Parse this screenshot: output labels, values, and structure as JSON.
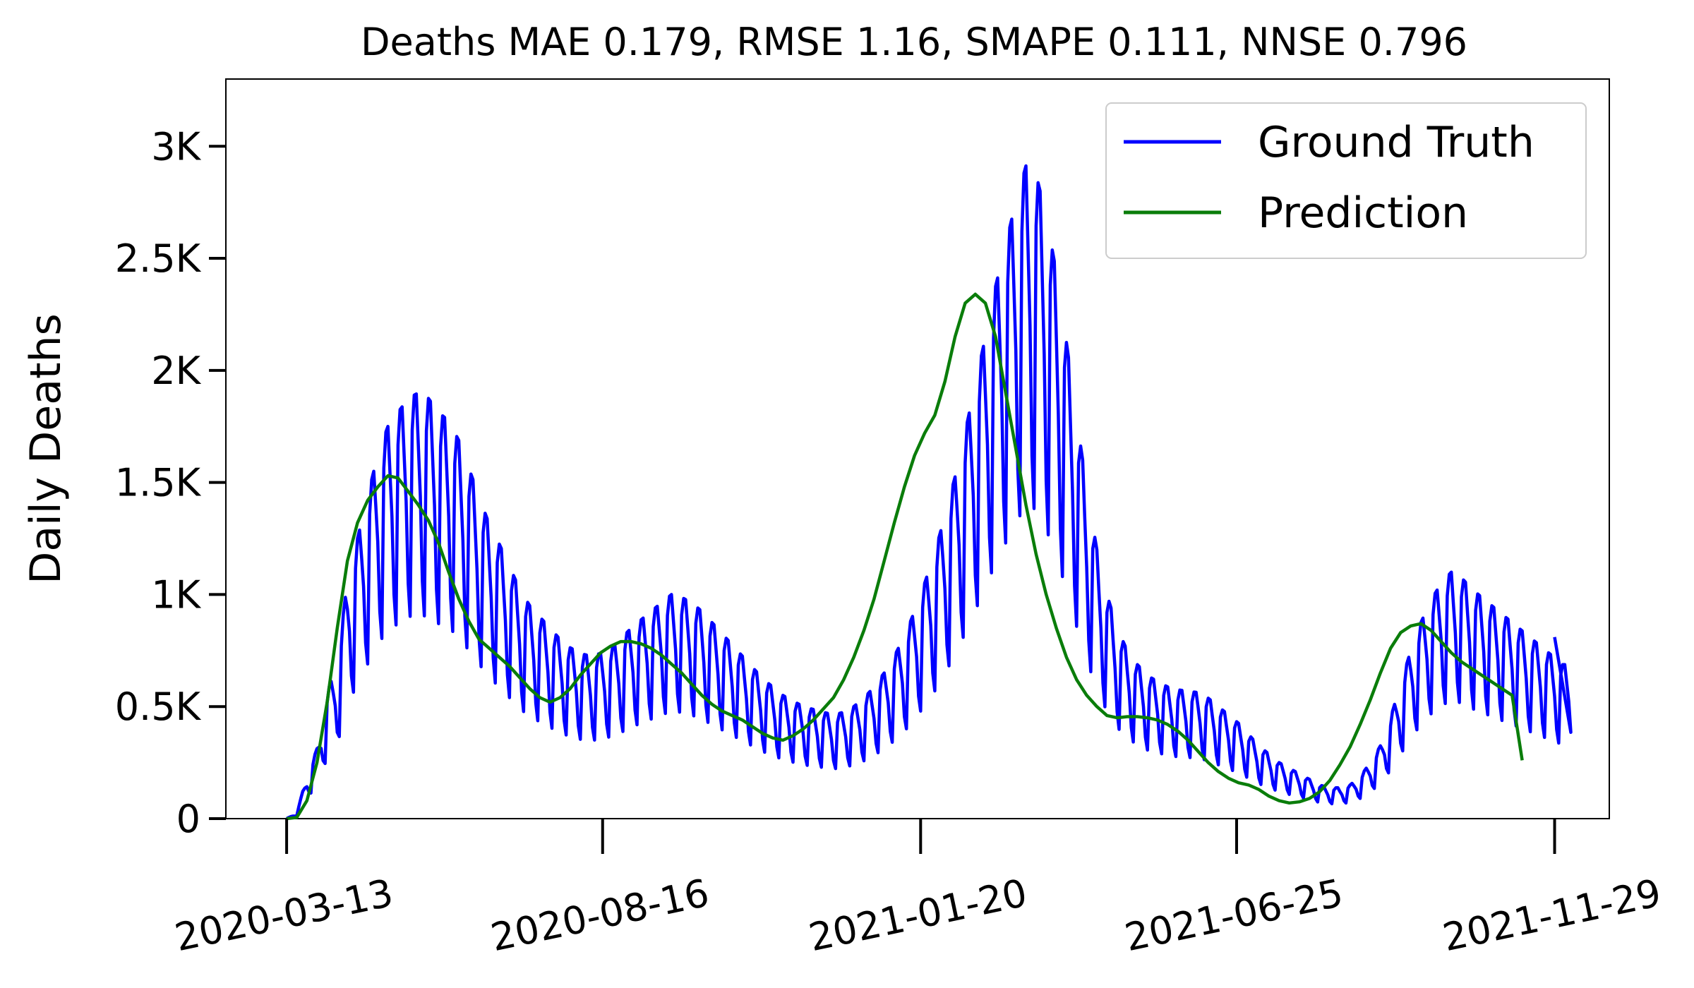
{
  "chart_data": {
    "type": "line",
    "title": "Deaths MAE 0.179, RMSE 1.16, SMAPE 0.111, NNSE 0.796",
    "xlabel": "",
    "ylabel": "Daily Deaths",
    "x_start": "2020-03-13",
    "x_end": "2021-11-29",
    "xticks": [
      "2020-03-13",
      "2020-08-16",
      "2021-01-20",
      "2021-06-25",
      "2021-11-29"
    ],
    "xlim": [
      "2020-02-12",
      "2021-12-26"
    ],
    "yticks": [
      {
        "value": 0,
        "label": "0"
      },
      {
        "value": 500,
        "label": "0.5K"
      },
      {
        "value": 1000,
        "label": "1K"
      },
      {
        "value": 1500,
        "label": "1.5K"
      },
      {
        "value": 2000,
        "label": "2K"
      },
      {
        "value": 2500,
        "label": "2.5K"
      },
      {
        "value": 3000,
        "label": "3K"
      }
    ],
    "ylim": [
      0,
      3300
    ],
    "grid": false,
    "legend_position": "top-right",
    "series": [
      {
        "name": "Ground Truth",
        "color": "#0000ff",
        "step_days": 1,
        "anchor_values": [
          0,
          20,
          150,
          250,
          450,
          550,
          850,
          1000,
          1150,
          1300,
          1400,
          1450,
          1500,
          1520,
          1500,
          1450,
          1420,
          1350,
          1250,
          1150,
          1050,
          980,
          900,
          820,
          760,
          720,
          680,
          640,
          610,
          590,
          580,
          590,
          610,
          640,
          680,
          710,
          740,
          770,
          800,
          790,
          770,
          740,
          700,
          660,
          620,
          580,
          540,
          500,
          470,
          440,
          420,
          400,
          390,
          380,
          370,
          380,
          400,
          430,
          470,
          520,
          580,
          650,
          740,
          840,
          950,
          1080,
          1220,
          1380,
          1550,
          1720,
          1900,
          2050,
          2200,
          2330,
          2300,
          2150,
          1950,
          1700,
          1430,
          1180,
          960,
          800,
          680,
          600,
          550,
          510,
          490,
          470,
          460,
          455,
          450,
          430,
          400,
          370,
          340,
          300,
          260,
          230,
          200,
          180,
          160,
          140,
          120,
          110,
          110,
          120,
          150,
          200,
          260,
          360,
          480,
          600,
          700,
          780,
          840,
          880,
          860,
          820,
          790,
          760,
          730,
          700,
          670,
          640,
          610,
          580,
          550
        ],
        "weekly_pattern": [
          1.25,
          1.25,
          1.1,
          0.95,
          0.7,
          0.6,
          1.15
        ],
        "final_value": 810
      },
      {
        "name": "Prediction",
        "color": "#0a7d0a",
        "step_days": 5,
        "values": [
          0,
          5,
          80,
          250,
          520,
          850,
          1150,
          1320,
          1420,
          1480,
          1530,
          1520,
          1460,
          1400,
          1330,
          1230,
          1100,
          980,
          880,
          800,
          760,
          720,
          680,
          630,
          580,
          540,
          520,
          540,
          580,
          640,
          690,
          740,
          770,
          790,
          790,
          780,
          760,
          730,
          690,
          650,
          600,
          550,
          510,
          480,
          460,
          440,
          410,
          380,
          360,
          350,
          370,
          400,
          440,
          490,
          540,
          620,
          720,
          840,
          980,
          1150,
          1320,
          1480,
          1620,
          1720,
          1800,
          1950,
          2150,
          2300,
          2340,
          2300,
          2150,
          1900,
          1650,
          1400,
          1180,
          1000,
          850,
          720,
          620,
          550,
          500,
          460,
          450,
          455,
          455,
          450,
          440,
          420,
          390,
          350,
          300,
          250,
          210,
          180,
          160,
          150,
          130,
          100,
          80,
          70,
          75,
          90,
          120,
          170,
          240,
          320,
          420,
          530,
          650,
          760,
          830,
          860,
          870,
          840,
          790,
          740,
          700,
          670,
          640,
          610,
          580,
          550,
          260
        ]
      }
    ]
  }
}
